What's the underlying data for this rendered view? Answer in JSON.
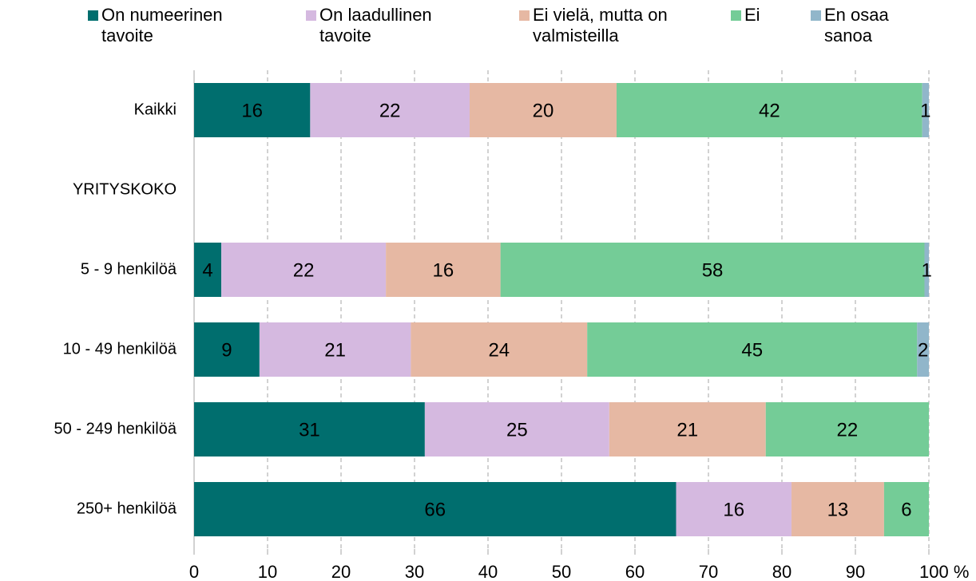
{
  "chart_data": {
    "type": "stacked_bar_horizontal",
    "categories": [
      "Kaikki",
      "YRITYSKOKO",
      "5 - 9 henkilöä",
      "10 - 49 henkilöä",
      "50 - 249 henkilöä",
      "250+ henkilöä"
    ],
    "series": [
      {
        "name": "On numeerinen tavoite",
        "color": "#006e6e",
        "label_color": "#ffffff",
        "values": [
          15.8,
          null,
          3.7,
          8.9,
          31.4,
          65.6
        ]
      },
      {
        "name": "On laadullinen tavoite",
        "color": "#d5b9e0",
        "label_color": "#ffffff",
        "values": [
          21.7,
          null,
          22.4,
          20.6,
          25.1,
          15.7
        ]
      },
      {
        "name": "Ei vielä, mutta on valmisteilla",
        "color": "#e6b8a3",
        "label_color": "#000000",
        "values": [
          20.0,
          null,
          15.6,
          24.0,
          21.3,
          12.6
        ]
      },
      {
        "name": "Ei",
        "color": "#74cc97",
        "label_color": "#ffffff",
        "values": [
          41.6,
          null,
          57.7,
          44.9,
          22.2,
          6.1
        ]
      },
      {
        "name": "En osaa sanoa",
        "color": "#91b6ca",
        "label_color": "#000000",
        "values": [
          0.9,
          null,
          0.6,
          1.6,
          null,
          null
        ]
      }
    ],
    "value_labels": [
      [
        "16",
        null,
        "4",
        "9",
        "31",
        "66"
      ],
      [
        "22",
        null,
        "22",
        "21",
        "25",
        "16"
      ],
      [
        "20",
        null,
        "16",
        "24",
        "21",
        "13"
      ],
      [
        "42",
        null,
        "58",
        "45",
        "22",
        "6"
      ],
      [
        "1",
        null,
        "1",
        "2",
        null,
        null
      ]
    ],
    "xlim": [
      0,
      100
    ],
    "xticks": [
      0,
      10,
      20,
      30,
      40,
      50,
      60,
      70,
      80,
      90,
      {
        "value": 100,
        "label": "100 %"
      }
    ],
    "grid": true,
    "legend": "top"
  }
}
